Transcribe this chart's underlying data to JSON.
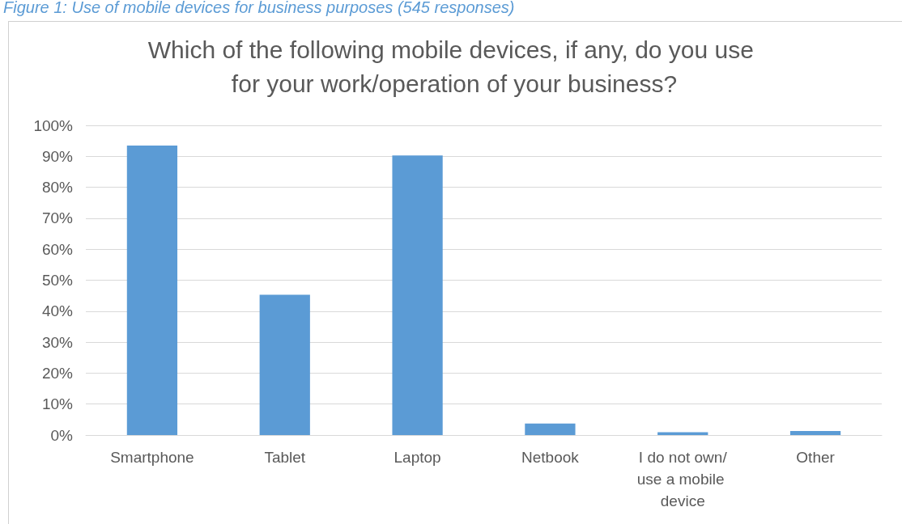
{
  "chart_data": {
    "type": "bar",
    "title": "Which of the following mobile devices, if any, do you use for your work/operation of your business?",
    "annotations": [
      "Figure 1: Use of mobile devices for business purposes (545 responses)"
    ],
    "categories": [
      "Smartphone",
      "Tablet",
      "Laptop",
      "Netbook",
      "I do not own/use a mobile device",
      "Other"
    ],
    "values": [
      93.5,
      45.3,
      90.3,
      3.7,
      0.9,
      1.3
    ],
    "color": "#5b9bd5",
    "ylim": [
      0,
      100
    ],
    "yticks": [
      {
        "value": 0,
        "label": "0%"
      },
      {
        "value": 10,
        "label": "10%"
      },
      {
        "value": 20,
        "label": "20%"
      },
      {
        "value": 30,
        "label": "30%"
      },
      {
        "value": 40,
        "label": "40%"
      },
      {
        "value": 50,
        "label": "50%"
      },
      {
        "value": 60,
        "label": "60%"
      },
      {
        "value": 70,
        "label": "70%"
      },
      {
        "value": 80,
        "label": "80%"
      },
      {
        "value": 90,
        "label": "90%"
      },
      {
        "value": 100,
        "label": "100%"
      }
    ],
    "grid": "y"
  }
}
